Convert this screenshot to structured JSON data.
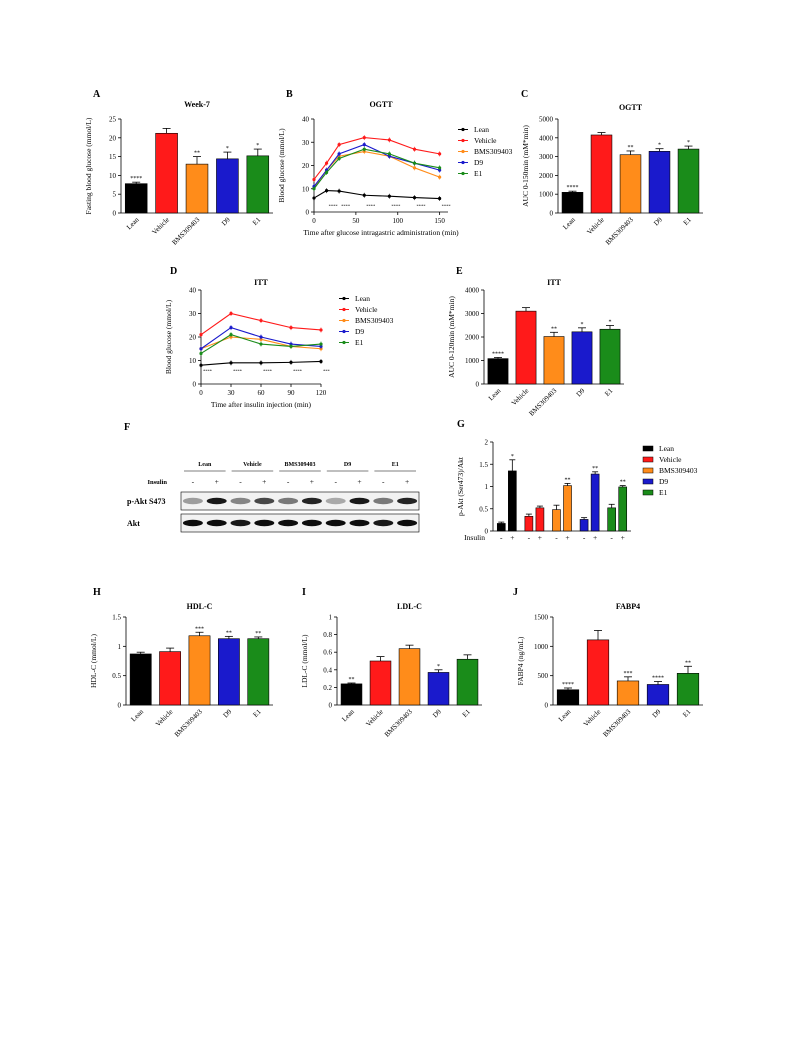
{
  "colors": {
    "Lean": "#000000",
    "Vehicle": "#ff1a1a",
    "BMS309403": "#ff8c1a",
    "D9": "#1a1acc",
    "E1": "#1a8c1a"
  },
  "chart_data": [
    {
      "id": "A",
      "letter": "A",
      "type": "bar",
      "title": "Week-7",
      "ylabel": "Fasting blood glucose (mmol/L)",
      "ylim": [
        0,
        25
      ],
      "yticks": [
        0,
        5,
        10,
        15,
        20,
        25
      ],
      "categories": [
        "Lean",
        "Vehicle",
        "BMS309403",
        "D9",
        "E1"
      ],
      "values": [
        7.8,
        21.2,
        13.0,
        14.4,
        15.2
      ],
      "errors": [
        0.4,
        1.3,
        2.0,
        1.8,
        1.8
      ],
      "annotations": [
        "****",
        "",
        "**",
        "*",
        "*"
      ]
    },
    {
      "id": "B",
      "letter": "B",
      "type": "line",
      "title": "OGTT",
      "ylabel": "Blood glucose (mmol/L)",
      "xlabel": "Time after glucose intragastric administration (min)",
      "ylim": [
        0,
        40
      ],
      "yticks": [
        0,
        10,
        20,
        30,
        40
      ],
      "xlim": [
        0,
        160
      ],
      "xticks": [
        0,
        50,
        100,
        150
      ],
      "x": [
        0,
        15,
        30,
        60,
        90,
        120,
        150
      ],
      "series": [
        {
          "name": "Lean",
          "values": [
            6.0,
            9.2,
            9.0,
            7.2,
            6.8,
            6.2,
            5.8
          ]
        },
        {
          "name": "Vehicle",
          "values": [
            14.0,
            21.0,
            29.0,
            32.0,
            31.0,
            27.0,
            25.0
          ]
        },
        {
          "name": "BMS309403",
          "values": [
            10.5,
            18.0,
            24.0,
            26.0,
            24.0,
            19.0,
            15.0
          ]
        },
        {
          "name": "D9",
          "values": [
            11.0,
            18.0,
            25.0,
            29.0,
            24.0,
            21.0,
            18.0
          ]
        },
        {
          "name": "E1",
          "values": [
            10.0,
            17.0,
            23.0,
            27.0,
            25.0,
            21.0,
            19.0
          ]
        }
      ],
      "annotations": [
        {
          "x": 15,
          "y": 2,
          "text": "****"
        },
        {
          "x": 30,
          "y": 2,
          "text": "****"
        },
        {
          "x": 60,
          "y": 2,
          "text": "****"
        },
        {
          "x": 90,
          "y": 2,
          "text": "****"
        },
        {
          "x": 120,
          "y": 2,
          "text": "****"
        },
        {
          "x": 150,
          "y": 2,
          "text": "****"
        }
      ]
    },
    {
      "id": "C",
      "letter": "C",
      "type": "bar",
      "title": "OGTT",
      "ylabel": "AUC 0-150min (mM*min)",
      "ylim": [
        0,
        5000
      ],
      "yticks": [
        0,
        1000,
        2000,
        3000,
        4000,
        5000
      ],
      "categories": [
        "Lean",
        "Vehicle",
        "BMS309403",
        "D9",
        "E1"
      ],
      "values": [
        1100,
        4150,
        3100,
        3280,
        3400
      ],
      "errors": [
        60,
        130,
        200,
        140,
        160
      ],
      "annotations": [
        "****",
        "",
        "**",
        "*",
        "*"
      ]
    },
    {
      "id": "D",
      "letter": "D",
      "type": "line",
      "title": "ITT",
      "ylabel": "Blood glucose (mmol/L)",
      "xlabel": "Time after insulin injection (min)",
      "ylim": [
        0,
        40
      ],
      "yticks": [
        0,
        10,
        20,
        30,
        40
      ],
      "xlim": [
        0,
        120
      ],
      "xticks": [
        0,
        30,
        60,
        90,
        120
      ],
      "x": [
        0,
        30,
        60,
        90,
        120
      ],
      "series": [
        {
          "name": "Lean",
          "values": [
            8.0,
            9.0,
            9.0,
            9.2,
            9.6
          ]
        },
        {
          "name": "Vehicle",
          "values": [
            21.0,
            30.0,
            27.0,
            24.0,
            23.0
          ]
        },
        {
          "name": "BMS309403",
          "values": [
            15.0,
            20.0,
            19.0,
            16.0,
            15.0
          ]
        },
        {
          "name": "D9",
          "values": [
            15.0,
            24.0,
            20.0,
            17.0,
            16.0
          ]
        },
        {
          "name": "E1",
          "values": [
            13.0,
            21.0,
            17.0,
            16.0,
            17.0
          ]
        }
      ],
      "annotations": [
        {
          "x": 0,
          "y": 5,
          "text": "****"
        },
        {
          "x": 30,
          "y": 5,
          "text": "****"
        },
        {
          "x": 60,
          "y": 5,
          "text": "****"
        },
        {
          "x": 90,
          "y": 5,
          "text": "****"
        },
        {
          "x": 120,
          "y": 5,
          "text": "***"
        }
      ]
    },
    {
      "id": "E",
      "letter": "E",
      "type": "bar",
      "title": "ITT",
      "ylabel": "AUC 0-120min (mM*min)",
      "ylim": [
        0,
        4000
      ],
      "yticks": [
        0,
        1000,
        2000,
        3000,
        4000
      ],
      "categories": [
        "Lean",
        "Vehicle",
        "BMS309403",
        "D9",
        "E1"
      ],
      "values": [
        1080,
        3100,
        2020,
        2220,
        2330
      ],
      "errors": [
        50,
        150,
        180,
        170,
        160
      ],
      "annotations": [
        "****",
        "",
        "**",
        "*",
        "*"
      ]
    },
    {
      "id": "G",
      "letter": "G",
      "type": "bar",
      "ylabel": "p-Akt (Ser473)/Akt",
      "ylim": [
        0,
        2.0
      ],
      "yticks": [
        0,
        0.5,
        1.0,
        1.5,
        2.0
      ],
      "xaxis_label": "Insulin",
      "groups": [
        "Lean",
        "Vehicle",
        "BMS309403",
        "D9",
        "E1"
      ],
      "insulin": [
        "-",
        "+"
      ],
      "values": [
        [
          0.17,
          1.35
        ],
        [
          0.33,
          0.52
        ],
        [
          0.48,
          1.02
        ],
        [
          0.26,
          1.28
        ],
        [
          0.52,
          0.99
        ]
      ],
      "errors": [
        [
          0.03,
          0.25
        ],
        [
          0.05,
          0.04
        ],
        [
          0.1,
          0.05
        ],
        [
          0.04,
          0.05
        ],
        [
          0.08,
          0.03
        ]
      ],
      "annotations": [
        [
          "",
          "*"
        ],
        [
          "",
          ""
        ],
        [
          "",
          "**"
        ],
        [
          "",
          "**"
        ],
        [
          "",
          "**"
        ]
      ]
    },
    {
      "id": "H",
      "letter": "H",
      "type": "bar",
      "title": "HDL-C",
      "ylabel": "HDL-C (mmol/L)",
      "ylim": [
        0,
        1.5
      ],
      "yticks": [
        0,
        0.5,
        1.0,
        1.5
      ],
      "categories": [
        "Lean",
        "Vehicle",
        "BMS309403",
        "D9",
        "E1"
      ],
      "values": [
        0.87,
        0.91,
        1.18,
        1.13,
        1.13
      ],
      "errors": [
        0.03,
        0.06,
        0.06,
        0.04,
        0.03
      ],
      "annotations": [
        "",
        "",
        "***",
        "**",
        "**"
      ]
    },
    {
      "id": "I",
      "letter": "I",
      "type": "bar",
      "title": "LDL-C",
      "ylabel": "LDL-C (mmol/L)",
      "ylim": [
        0,
        1.0
      ],
      "yticks": [
        0,
        0.2,
        0.4,
        0.6,
        0.8,
        1.0
      ],
      "categories": [
        "Lean",
        "Vehicle",
        "BMS309403",
        "D9",
        "E1"
      ],
      "values": [
        0.24,
        0.5,
        0.64,
        0.37,
        0.52
      ],
      "errors": [
        0.01,
        0.05,
        0.04,
        0.03,
        0.05
      ],
      "annotations": [
        "**",
        "",
        "",
        "*",
        ""
      ]
    },
    {
      "id": "J",
      "letter": "J",
      "type": "bar",
      "title": "FABP4",
      "ylabel": "FABP4 (ng/mL)",
      "ylim": [
        0,
        1500
      ],
      "yticks": [
        0,
        500,
        1000,
        1500
      ],
      "categories": [
        "Lean",
        "Vehicle",
        "BMS309403",
        "D9",
        "E1"
      ],
      "values": [
        260,
        1110,
        410,
        350,
        540
      ],
      "errors": [
        30,
        160,
        70,
        50,
        120
      ],
      "annotations": [
        "****",
        "",
        "***",
        "****",
        "**"
      ]
    }
  ],
  "legends": {
    "B": [
      "Lean",
      "Vehicle",
      "BMS309403",
      "D9",
      "E1"
    ],
    "D": [
      "Lean",
      "Vehicle",
      "BMS309403",
      "D9",
      "E1"
    ],
    "G": [
      "Lean",
      "Vehicle",
      "BMS309403",
      "D9",
      "E1"
    ]
  },
  "blot": {
    "letter": "F",
    "groups": [
      "Lean",
      "Vehicle",
      "BMS309403",
      "D9",
      "E1"
    ],
    "insulin_label": "Insulin",
    "insulin_marks": [
      "-",
      "+",
      "-",
      "+",
      "-",
      "+",
      "-",
      "+",
      "-",
      "+"
    ],
    "rows": [
      "p-Akt S473",
      "Akt"
    ],
    "intensities": [
      [
        0.35,
        0.9,
        0.45,
        0.7,
        0.5,
        0.85,
        0.3,
        0.9,
        0.5,
        0.85
      ],
      [
        0.95,
        0.95,
        0.9,
        0.95,
        0.95,
        0.95,
        0.95,
        0.95,
        0.9,
        0.95
      ]
    ]
  }
}
